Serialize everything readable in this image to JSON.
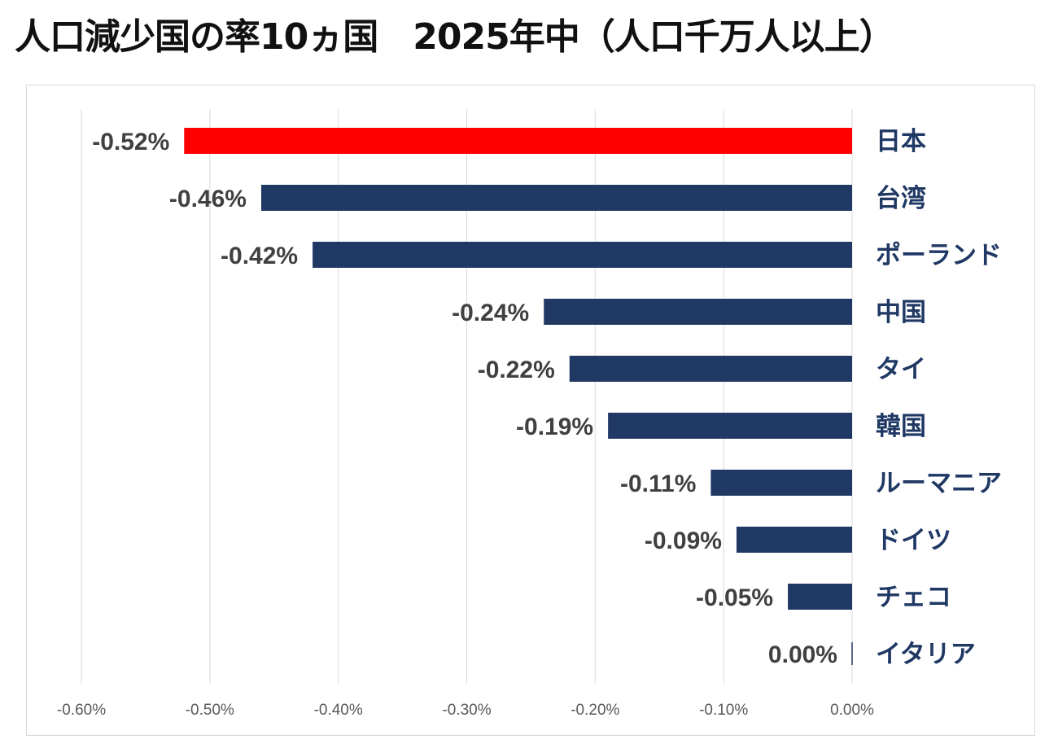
{
  "title": "人口減少国の率10ヵ国　2025年中（人口千万人以上）",
  "colors": {
    "highlight": "#ff0000",
    "bar": "#1f3864",
    "category_text": "#1f3864",
    "grid": "#d9d9d9"
  },
  "chart_data": {
    "type": "bar",
    "orientation": "horizontal",
    "categories": [
      "日本",
      "台湾",
      "ポーランド",
      "中国",
      "タイ",
      "韓国",
      "ルーマニア",
      "ドイツ",
      "チェコ",
      "イタリア"
    ],
    "values": [
      -0.52,
      -0.46,
      -0.42,
      -0.24,
      -0.22,
      -0.19,
      -0.11,
      -0.09,
      -0.05,
      0.0
    ],
    "data_labels": [
      "-0.52%",
      "-0.46%",
      "-0.42%",
      "-0.24%",
      "-0.22%",
      "-0.19%",
      "-0.11%",
      "-0.09%",
      "-0.05%",
      "0.00%"
    ],
    "highlight_index": 0,
    "xlim": [
      -0.6,
      0.0
    ],
    "xticks": [
      -0.6,
      -0.5,
      -0.4,
      -0.3,
      -0.2,
      -0.1,
      0.0
    ],
    "xtick_labels": [
      "-0.60%",
      "-0.50%",
      "-0.40%",
      "-0.30%",
      "-0.20%",
      "-0.10%",
      "0.00%"
    ],
    "grid": true,
    "category_axis_side": "right",
    "legend": "none"
  }
}
